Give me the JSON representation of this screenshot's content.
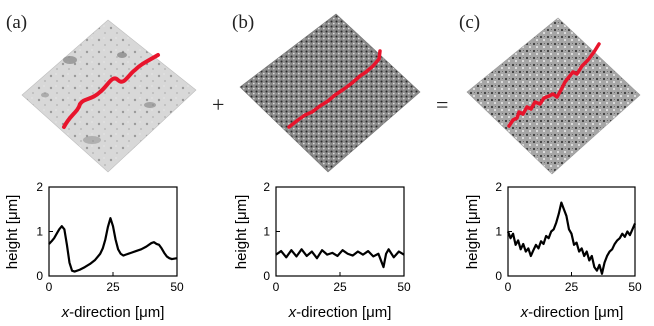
{
  "figure": {
    "panels": [
      {
        "label": "(a)",
        "surface_tone": "light",
        "ylabel": "height [",
        "ylabel_unit": "μm",
        "ylabel_close": "]",
        "xlabel_italic": "x",
        "xlabel_rest": "-direction [",
        "xlabel_unit": "μm",
        "xlabel_close": "]"
      },
      {
        "label": "(b)",
        "surface_tone": "dark-fine",
        "ylabel": "height [",
        "ylabel_unit": "μm",
        "ylabel_close": "]",
        "xlabel_italic": "x",
        "xlabel_rest": "-direction [",
        "xlabel_unit": "μm",
        "xlabel_close": "]"
      },
      {
        "label": "(c)",
        "surface_tone": "mixed",
        "ylabel": "height [",
        "ylabel_unit": "μm",
        "ylabel_close": "]",
        "xlabel_italic": "x",
        "xlabel_rest": "-direction [",
        "xlabel_unit": "μm",
        "xlabel_close": "]"
      }
    ],
    "operators": [
      "+",
      "="
    ],
    "profile_color": "#e8142c"
  },
  "chart_data": [
    {
      "type": "line",
      "panel": "(a)",
      "xlim": [
        0,
        50
      ],
      "ylim": [
        0,
        2
      ],
      "xticks": [
        0,
        25,
        50
      ],
      "yticks": [
        0,
        1,
        2
      ],
      "series": [
        {
          "x": [
            0,
            1,
            2,
            3,
            4,
            5,
            6,
            7,
            8,
            9,
            10,
            12,
            14,
            16,
            18,
            20,
            21,
            22,
            23,
            24,
            25,
            26,
            27,
            28,
            29,
            30,
            32,
            34,
            36,
            38,
            40,
            41,
            42,
            43,
            44,
            45,
            46,
            47,
            48,
            50
          ],
          "y": [
            0.72,
            0.78,
            0.85,
            0.95,
            1.05,
            1.12,
            1.05,
            0.7,
            0.3,
            0.12,
            0.1,
            0.14,
            0.2,
            0.27,
            0.36,
            0.5,
            0.62,
            0.82,
            1.1,
            1.3,
            1.12,
            0.82,
            0.6,
            0.5,
            0.46,
            0.48,
            0.52,
            0.56,
            0.6,
            0.66,
            0.74,
            0.76,
            0.72,
            0.7,
            0.62,
            0.52,
            0.44,
            0.4,
            0.38,
            0.4
          ]
        }
      ]
    },
    {
      "type": "line",
      "panel": "(b)",
      "xlim": [
        0,
        50
      ],
      "ylim": [
        0,
        2
      ],
      "xticks": [
        0,
        25,
        50
      ],
      "yticks": [
        0,
        1,
        2
      ],
      "series": [
        {
          "x": [
            0,
            2,
            4,
            6,
            8,
            10,
            12,
            14,
            16,
            18,
            20,
            22,
            24,
            26,
            28,
            30,
            32,
            34,
            36,
            38,
            40,
            41,
            42,
            43,
            44,
            46,
            48,
            50
          ],
          "y": [
            0.48,
            0.56,
            0.42,
            0.58,
            0.44,
            0.6,
            0.45,
            0.55,
            0.4,
            0.58,
            0.48,
            0.52,
            0.45,
            0.58,
            0.5,
            0.46,
            0.55,
            0.48,
            0.56,
            0.44,
            0.5,
            0.35,
            0.2,
            0.5,
            0.6,
            0.42,
            0.55,
            0.48
          ]
        }
      ]
    },
    {
      "type": "line",
      "panel": "(c)",
      "xlim": [
        0,
        50
      ],
      "ylim": [
        0,
        2
      ],
      "xticks": [
        0,
        25,
        50
      ],
      "yticks": [
        0,
        1,
        2
      ],
      "series": [
        {
          "x": [
            0,
            1,
            2,
            3,
            4,
            5,
            6,
            7,
            8,
            9,
            10,
            11,
            12,
            13,
            14,
            15,
            16,
            17,
            18,
            19,
            20,
            21,
            22,
            23,
            24,
            25,
            26,
            27,
            28,
            29,
            30,
            31,
            32,
            33,
            34,
            35,
            36,
            37,
            38,
            39,
            40,
            41,
            42,
            43,
            44,
            45,
            46,
            47,
            48,
            49,
            50
          ],
          "y": [
            1.0,
            0.85,
            0.95,
            0.7,
            0.8,
            0.6,
            0.72,
            0.55,
            0.62,
            0.45,
            0.58,
            0.7,
            0.62,
            0.78,
            0.72,
            0.9,
            0.85,
            1.0,
            1.05,
            1.2,
            1.4,
            1.65,
            1.5,
            1.35,
            1.05,
            0.95,
            0.7,
            0.75,
            0.55,
            0.62,
            0.45,
            0.55,
            0.35,
            0.45,
            0.2,
            0.12,
            0.25,
            0.05,
            0.3,
            0.45,
            0.55,
            0.6,
            0.72,
            0.8,
            0.85,
            0.95,
            0.88,
            1.0,
            0.92,
            1.05,
            1.18
          ]
        }
      ]
    }
  ]
}
